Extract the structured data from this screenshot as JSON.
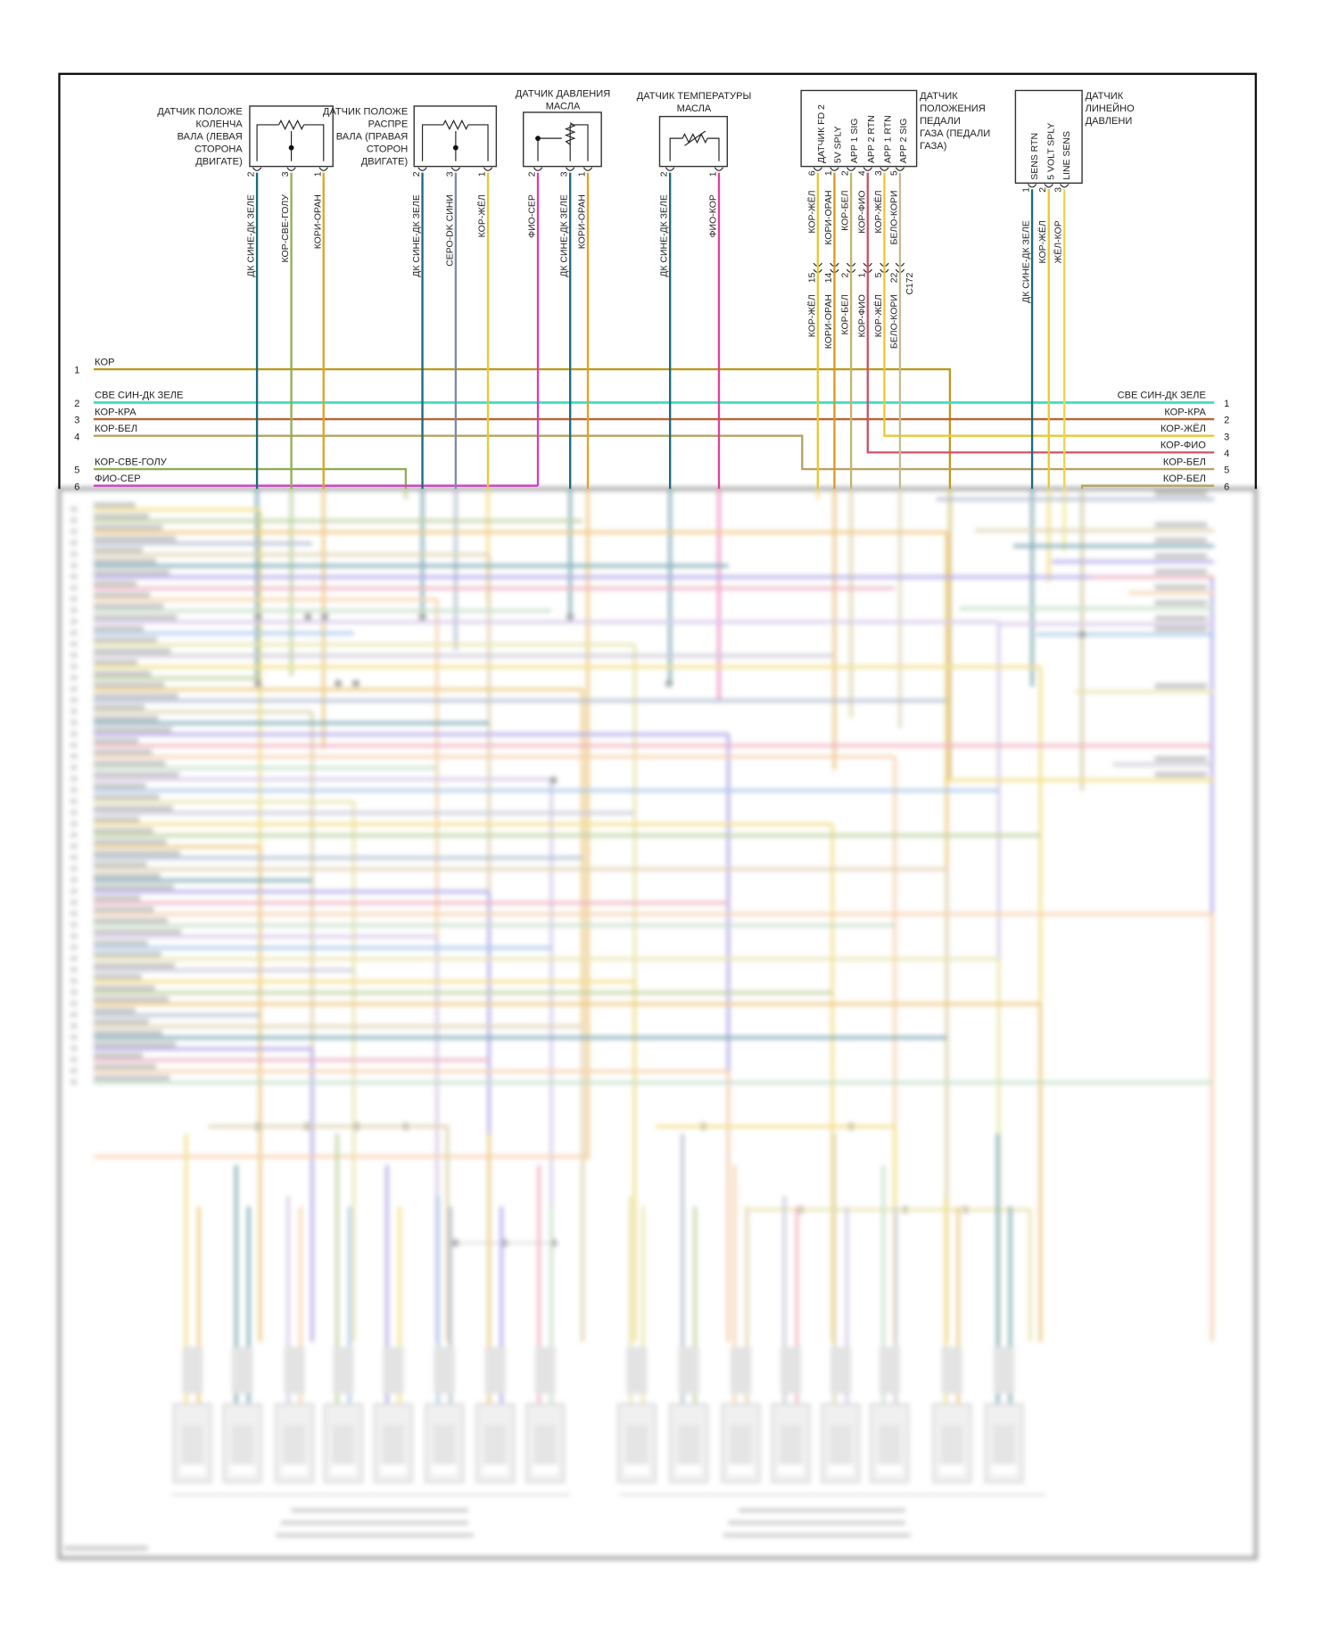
{
  "sensors": [
    {
      "title": [
        "ДАТЧИК ПОЛОЖЕ",
        "КОЛЕНЧА",
        "ВАЛА (ЛЕВАЯ",
        "СТОРОНА",
        "ДВИГАТЕ)"
      ],
      "pins": [
        {
          "n": "2",
          "wire": "ДК СИНЕ-ДК ЗЕЛЕ",
          "color": "#1d6a7c"
        },
        {
          "n": "3",
          "wire": "КОР-СВЕ-ГОЛУ",
          "color": "#8fae55"
        },
        {
          "n": "1",
          "wire": "КОРИ-ОРАН",
          "color": "#e0a228"
        }
      ]
    },
    {
      "title": [
        "ДАТЧИК ПОЛОЖЕ",
        "РАСПРЕ",
        "ВАЛА (ПРАВАЯ",
        "СТОРОН",
        "ДВИГАТЕ)"
      ],
      "pins": [
        {
          "n": "2",
          "wire": "ДК СИНЕ-ДК ЗЕЛЕ",
          "color": "#1d6a7c"
        },
        {
          "n": "3",
          "wire": "СЕРО-DK СИНИ",
          "color": "#7a8cab"
        },
        {
          "n": "1",
          "wire": "КОР-ЖЁЛ",
          "color": "#e8c832"
        }
      ]
    },
    {
      "title": [
        "ДАТЧИК ДАВЛЕНИЯ",
        "МАСЛА"
      ],
      "pins": [
        {
          "n": "2",
          "wire": "ФИО-СЕР",
          "color": "#d13fc4"
        },
        {
          "n": "3",
          "wire": "ДК СИНЕ-ДК ЗЕЛЕ",
          "color": "#1d6a7c"
        },
        {
          "n": "1",
          "wire": "КОРИ-ОРАН",
          "color": "#e0a228"
        }
      ]
    },
    {
      "title": [
        "ДАТЧИК ТЕМПЕРАТУРЫ",
        "МАСЛА"
      ],
      "pins": [
        {
          "n": "2",
          "wire": "ДК СИНЕ-ДК ЗЕЛЕ",
          "color": "#1d6a7c"
        },
        {
          "n": "1",
          "wire": "ФИО-КОР",
          "color": "#e0409a"
        }
      ]
    },
    {
      "title": [
        "ДАТЧИК",
        "ПОЛОЖЕНИЯ",
        "ПЕДАЛИ",
        "ГАЗА (ПЕДАЛИ",
        "ГАЗА)"
      ],
      "terminals": [
        "ДАТЧИК FD 2",
        "5V SPLY",
        "APP 1 SIG",
        "APP 2 RTN",
        "APP 1 RTN",
        "APP 2 SIG"
      ],
      "pins": [
        {
          "n": "6",
          "wire": "КОР-ЖЁЛ",
          "color": "#e8c832"
        },
        {
          "n": "1",
          "wire": "КОРИ-ОРАН",
          "color": "#d89a22"
        },
        {
          "n": "2",
          "wire": "КОР-БЕЛ",
          "color": "#c6b277"
        },
        {
          "n": "4",
          "wire": "КОР-ФИО",
          "color": "#cf5065"
        },
        {
          "n": "3",
          "wire": "КОР-ЖЁЛ",
          "color": "#e8c832"
        },
        {
          "n": "5",
          "wire": "БЕЛО-КОРИ",
          "color": "#c4bb92"
        }
      ],
      "connector": {
        "name": "C172",
        "pins": [
          {
            "n": "15",
            "wire": "КОР-ЖЁЛ"
          },
          {
            "n": "14",
            "wire": "КОРИ-ОРАН"
          },
          {
            "n": "2",
            "wire": "КОР-БЕЛ"
          },
          {
            "n": "1",
            "wire": "КОР-ФИО"
          },
          {
            "n": "5",
            "wire": "КОР-ЖЁЛ"
          },
          {
            "n": "22",
            "wire": "БЕЛО-КОРИ"
          }
        ]
      }
    },
    {
      "title": [
        "ДАТЧИК",
        "ЛИНЕЙНО",
        "ДАВЛЕНИ"
      ],
      "terminals": [
        "SENS RTN",
        "5 VOLT SPLY",
        "LINE SENS"
      ],
      "pins": [
        {
          "n": "1",
          "wire": "ДК СИНЕ-ДК ЗЕЛЕ",
          "color": "#1d6a7c"
        },
        {
          "n": "2",
          "wire": "КОР-ЖЁЛ",
          "color": "#e8c832"
        },
        {
          "n": "3",
          "wire": "ЖЁЛ-КОР",
          "color": "#efd64a"
        }
      ]
    }
  ],
  "left_bus": [
    {
      "n": "1",
      "label": "КОР",
      "color": "#b99a22"
    },
    {
      "n": "2",
      "label": "СВЕ СИН-ДК ЗЕЛЕ",
      "color": "#3fe0c4"
    },
    {
      "n": "3",
      "label": "КОР-КРА",
      "color": "#c06232"
    },
    {
      "n": "4",
      "label": "КОР-БЕЛ",
      "color": "#b3a463"
    },
    {
      "n": "5",
      "label": "КОР-СВЕ-ГОЛУ",
      "color": "#8fae55"
    },
    {
      "n": "6",
      "label": "ФИО-СЕР",
      "color": "#d13fc4"
    }
  ],
  "right_bus": [
    {
      "n": "1",
      "label": "СВЕ СИН-ДК ЗЕЛЕ",
      "color": "#3fe0c4"
    },
    {
      "n": "2",
      "label": "КОР-КРА",
      "color": "#c06232"
    },
    {
      "n": "3",
      "label": "КОР-ЖЁЛ",
      "color": "#e8c832"
    },
    {
      "n": "4",
      "label": "КОР-ФИО",
      "color": "#cf5065"
    },
    {
      "n": "5",
      "label": "КОР-БЕЛ",
      "color": "#b3a463"
    },
    {
      "n": "6",
      "label": "КОР-БЕЛ",
      "color": "#b3a463"
    }
  ]
}
